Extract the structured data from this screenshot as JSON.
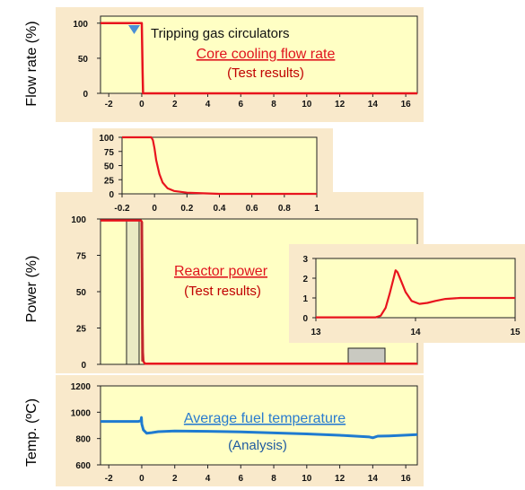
{
  "colors": {
    "panel_bg": "#f9e9cb",
    "plot_bg": "#ffffc4",
    "red_line": "#e8141e",
    "dark_red_line": "#c0282e",
    "blue_line": "#1f7bd0",
    "trip_marker": "#4a8fd6"
  },
  "chart_data": [
    {
      "id": "flow",
      "type": "line",
      "ylabel": "Flow rate (%)",
      "xlim": [
        -2.5,
        16.7
      ],
      "ylim": [
        0,
        110
      ],
      "xticks": [
        -2,
        0,
        2,
        4,
        6,
        8,
        10,
        12,
        14,
        16
      ],
      "yticks": [
        0,
        50,
        100
      ],
      "grid": false,
      "marker_label": "Tripping gas circulators",
      "marker_x": 0,
      "annotation": "Core cooling flow rate",
      "annotation_sub": "(Test results)",
      "series": [
        {
          "color": "red",
          "x": [
            -2.5,
            -0.05,
            0.0,
            0.05,
            0.08,
            16.7
          ],
          "y": [
            100,
            100,
            100,
            30,
            0,
            0
          ]
        }
      ]
    },
    {
      "id": "flow_zoom",
      "type": "line",
      "xlim": [
        -0.2,
        1.0
      ],
      "ylim": [
        0,
        100
      ],
      "xticks": [
        -0.2,
        0,
        0.2,
        0.4,
        0.6,
        0.8,
        1
      ],
      "yticks": [
        0,
        25,
        50,
        75,
        100
      ],
      "grid": false,
      "series": [
        {
          "color": "red",
          "x": [
            -0.2,
            -0.02,
            -0.01,
            0.0,
            0.01,
            0.03,
            0.05,
            0.08,
            0.12,
            0.2,
            0.3,
            0.4,
            1.0
          ],
          "y": [
            100,
            100,
            95,
            80,
            60,
            35,
            20,
            10,
            5,
            2,
            1,
            0,
            0
          ]
        }
      ]
    },
    {
      "id": "power",
      "type": "line",
      "ylabel": "Power (%)",
      "xlim": [
        -2.5,
        16.7
      ],
      "ylim": [
        0,
        100
      ],
      "yticks": [
        0,
        25,
        50,
        75,
        100
      ],
      "grid": false,
      "annotation": "Reactor power",
      "annotation_sub": "(Test results)",
      "zoom_windows": [
        {
          "x": [
            -0.2,
            0.1
          ],
          "y": [
            0,
            100
          ]
        },
        {
          "x": [
            13,
            15
          ],
          "y": [
            0,
            3
          ]
        }
      ],
      "series": [
        {
          "color": "red",
          "x": [
            -2.5,
            -0.05,
            0.0,
            0.03,
            0.06,
            0.1,
            0.2,
            16.7
          ],
          "y": [
            99,
            99,
            98,
            40,
            10,
            2,
            0.5,
            0.5
          ]
        }
      ]
    },
    {
      "id": "power_zoom",
      "type": "line",
      "xlim": [
        13,
        15
      ],
      "ylim": [
        0,
        3
      ],
      "xticks": [
        13,
        14,
        15
      ],
      "yticks": [
        0,
        1,
        2,
        3
      ],
      "grid": false,
      "series": [
        {
          "color": "red",
          "x": [
            13.0,
            13.6,
            13.65,
            13.7,
            13.74,
            13.78,
            13.8,
            13.82,
            13.86,
            13.9,
            13.96,
            14.04,
            14.12,
            14.2,
            14.3,
            14.45,
            14.6,
            14.8,
            15.0
          ],
          "y": [
            0.02,
            0.02,
            0.1,
            0.5,
            1.2,
            2.0,
            2.4,
            2.3,
            1.8,
            1.3,
            0.85,
            0.7,
            0.75,
            0.85,
            0.95,
            1.0,
            1.0,
            1.0,
            1.0
          ]
        }
      ]
    },
    {
      "id": "temperature",
      "type": "line",
      "ylabel": "Temp. (ºC)",
      "xlim": [
        -2.5,
        16.7
      ],
      "ylim": [
        600,
        1200
      ],
      "xticks": [
        -2,
        0,
        2,
        4,
        6,
        8,
        10,
        12,
        14,
        16
      ],
      "yticks": [
        600,
        800,
        1000,
        1200
      ],
      "grid": false,
      "annotation": "Average fuel temperature",
      "annotation_sub": "(Analysis)",
      "series": [
        {
          "color": "blue",
          "x": [
            -2.5,
            -0.2,
            -0.05,
            -0.02,
            0.0,
            0.1,
            0.3,
            0.6,
            1.0,
            2.0,
            4.0,
            6.0,
            8.0,
            10.0,
            12.0,
            13.8,
            14.0,
            14.3,
            15.0,
            16.7
          ],
          "y": [
            930,
            930,
            935,
            960,
            910,
            865,
            840,
            845,
            852,
            858,
            855,
            850,
            843,
            835,
            825,
            812,
            806,
            818,
            820,
            830
          ]
        }
      ]
    }
  ]
}
